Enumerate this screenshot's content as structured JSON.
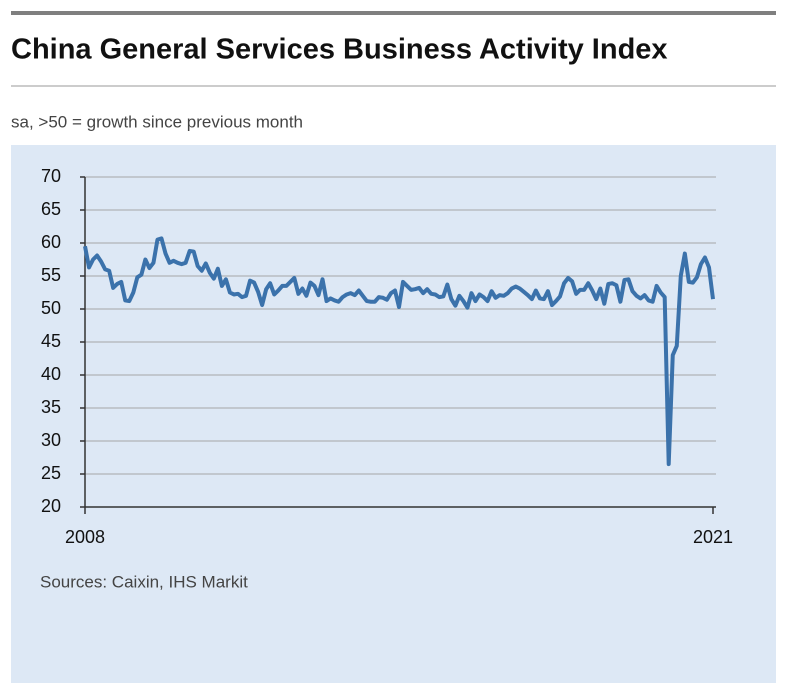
{
  "chart_data": {
    "type": "line",
    "title": "China General Services Business Activity Index",
    "subtitle": "sa, >50 = growth since previous month",
    "source": "Sources: Caixin, IHS Markit",
    "xlim": [
      2008,
      2021
    ],
    "xticks": [
      2008,
      2021
    ],
    "ylim": [
      20,
      70
    ],
    "yticks": [
      20,
      25,
      30,
      35,
      40,
      45,
      50,
      55,
      60,
      65,
      70
    ],
    "grid": true,
    "x": [
      2008,
      2008.083,
      2008.167,
      2008.25,
      2008.333,
      2008.417,
      2008.5,
      2008.583,
      2008.667,
      2008.75,
      2008.833,
      2008.917,
      2009,
      2009.083,
      2009.167,
      2009.25,
      2009.333,
      2009.417,
      2009.5,
      2009.583,
      2009.667,
      2009.75,
      2009.833,
      2009.917,
      2010,
      2010.083,
      2010.167,
      2010.25,
      2010.333,
      2010.417,
      2010.5,
      2010.583,
      2010.667,
      2010.75,
      2010.833,
      2010.917,
      2011,
      2011.083,
      2011.167,
      2011.25,
      2011.333,
      2011.417,
      2011.5,
      2011.583,
      2011.667,
      2011.75,
      2011.833,
      2011.917,
      2012,
      2012.083,
      2012.167,
      2012.25,
      2012.333,
      2012.417,
      2012.5,
      2012.583,
      2012.667,
      2012.75,
      2012.833,
      2012.917,
      2013,
      2013.083,
      2013.167,
      2013.25,
      2013.333,
      2013.417,
      2013.5,
      2013.583,
      2013.667,
      2013.75,
      2013.833,
      2013.917,
      2014,
      2014.083,
      2014.167,
      2014.25,
      2014.333,
      2014.417,
      2014.5,
      2014.583,
      2014.667,
      2014.75,
      2014.833,
      2014.917,
      2015,
      2015.083,
      2015.167,
      2015.25,
      2015.333,
      2015.417,
      2015.5,
      2015.583,
      2015.667,
      2015.75,
      2015.833,
      2015.917,
      2016,
      2016.083,
      2016.167,
      2016.25,
      2016.333,
      2016.417,
      2016.5,
      2016.583,
      2016.667,
      2016.75,
      2016.833,
      2016.917,
      2017,
      2017.083,
      2017.167,
      2017.25,
      2017.333,
      2017.417,
      2017.5,
      2017.583,
      2017.667,
      2017.75,
      2017.833,
      2017.917,
      2018,
      2018.083,
      2018.167,
      2018.25,
      2018.333,
      2018.417,
      2018.5,
      2018.583,
      2018.667,
      2018.75,
      2018.833,
      2018.917,
      2019,
      2019.083,
      2019.167,
      2019.25,
      2019.333,
      2019.417,
      2019.5,
      2019.583,
      2019.667,
      2019.75,
      2019.833,
      2019.917,
      2020,
      2020.083,
      2020.167,
      2020.25,
      2020.333,
      2020.417,
      2020.5,
      2020.583,
      2020.667,
      2020.75,
      2020.833,
      2020.917,
      2021
    ],
    "series": [
      {
        "color": "#3b72ab",
        "values": [
          59.5,
          56.3,
          57.5,
          58.1,
          57.2,
          56.0,
          55.8,
          53.2,
          53.8,
          54.1,
          51.3,
          51.2,
          52.5,
          54.8,
          55.2,
          57.5,
          56.2,
          57.0,
          60.5,
          60.7,
          58.4,
          57.0,
          57.3,
          57.0,
          56.8,
          57.0,
          58.8,
          58.7,
          56.5,
          55.8,
          56.9,
          55.5,
          54.6,
          56.1,
          53.5,
          54.5,
          52.5,
          52.2,
          52.3,
          51.8,
          52.0,
          54.3,
          54.0,
          52.6,
          50.6,
          53.0,
          53.9,
          52.2,
          52.8,
          53.5,
          53.5,
          54.1,
          54.7,
          52.3,
          53.1,
          52.0,
          54.0,
          53.5,
          52.1,
          54.5,
          51.2,
          51.6,
          51.3,
          51.1,
          51.8,
          52.2,
          52.4,
          52.1,
          52.8,
          52.0,
          51.2,
          51.1,
          51.1,
          51.8,
          51.7,
          51.4,
          52.4,
          52.8,
          50.3,
          54.1,
          53.5,
          52.9,
          53.0,
          53.2,
          52.4,
          53.0,
          52.3,
          52.2,
          51.8,
          51.9,
          53.7,
          51.5,
          50.5,
          52.0,
          51.2,
          50.2,
          52.4,
          51.2,
          52.2,
          51.8,
          51.2,
          52.7,
          51.7,
          52.1,
          52.0,
          52.4,
          53.1,
          53.4,
          53.1,
          52.6,
          52.1,
          51.5,
          52.8,
          51.6,
          51.5,
          52.7,
          50.6,
          51.2,
          51.9,
          53.9,
          54.7,
          54.2,
          52.3,
          52.9,
          52.9,
          53.9,
          52.8,
          51.5,
          53.1,
          50.8,
          53.8,
          53.9,
          53.6,
          51.1,
          54.4,
          54.5,
          52.7,
          52.0,
          51.6,
          52.1,
          51.3,
          51.1,
          53.5,
          52.5,
          51.8,
          26.5,
          43.0,
          44.4,
          55.0,
          58.4,
          54.1,
          54.0,
          54.8,
          56.8,
          57.8,
          56.3,
          51.5
        ]
      }
    ]
  }
}
